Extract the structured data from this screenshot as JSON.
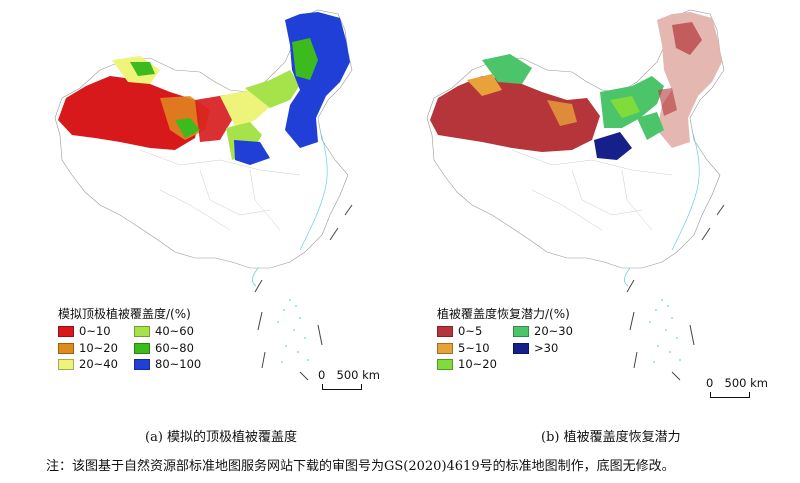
{
  "panel_a": {
    "legend_title": "模拟顶极植被覆盖度/(%)",
    "legend": [
      {
        "label": "0~10",
        "color": "#d7191c"
      },
      {
        "label": "40~60",
        "color": "#a6e34b"
      },
      {
        "label": "10~20",
        "color": "#e08a1e"
      },
      {
        "label": "60~80",
        "color": "#3cba1e"
      },
      {
        "label": "20~40",
        "color": "#eef37a"
      },
      {
        "label": "80~100",
        "color": "#1f3fd6"
      }
    ],
    "caption": "(a) 模拟的顶极植被覆盖度"
  },
  "panel_b": {
    "legend_title": "植被覆盖度恢复潜力/(%)",
    "legend": [
      {
        "label": "0~5",
        "color": "#b5353a"
      },
      {
        "label": "20~30",
        "color": "#4cc46a"
      },
      {
        "label": "5~10",
        "color": "#e8a23a"
      },
      {
        "label": ">30",
        "color": "#16208a"
      },
      {
        "label": "10~20",
        "color": "#7fdc3a"
      }
    ],
    "caption": "(b) 植被覆盖度恢复潜力"
  },
  "scale": {
    "zero": "0",
    "distance": "500 km"
  },
  "note": "注：该图基于自然资源部标准地图服务网站下载的审图号为GS(2020)4619号的标准地图制作，底图无修改。"
}
